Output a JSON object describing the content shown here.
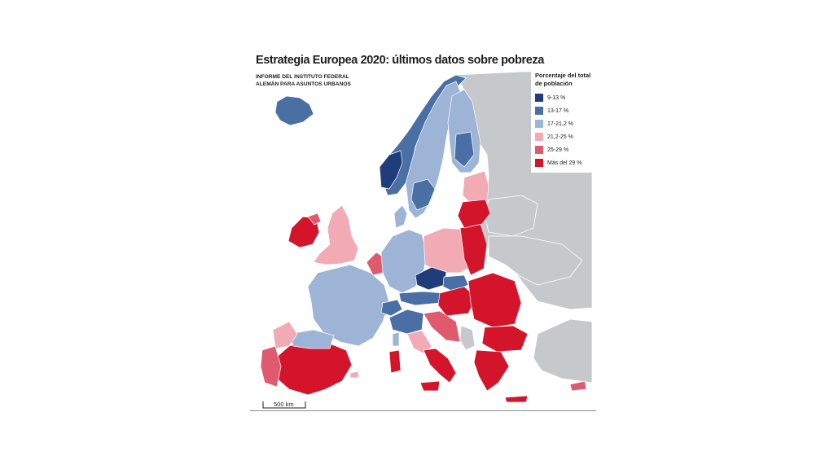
{
  "title": "Estrategia Europea 2020: últimos datos sobre pobreza",
  "source": "INFORME DEL INSTITUTO FEDERAL ALEMÁN PARA ASUNTOS URBANOS",
  "legend": {
    "title": "Porcentaje del total de población",
    "items": [
      {
        "label": "9-13 %",
        "color": "#1f3d7a"
      },
      {
        "label": "13-17 %",
        "color": "#4a6fa5"
      },
      {
        "label": "17-21,2 %",
        "color": "#9db4d6"
      },
      {
        "label": "21,2-25 %",
        "color": "#f2aab5"
      },
      {
        "label": "25-29 %",
        "color": "#e05a6e"
      },
      {
        "label": "Más del 29 %",
        "color": "#d4142a"
      }
    ]
  },
  "scale_label": "500 km",
  "colors": {
    "non_data_land": "#c6c9cc",
    "sea": "#ffffff",
    "border": "#ffffff"
  }
}
